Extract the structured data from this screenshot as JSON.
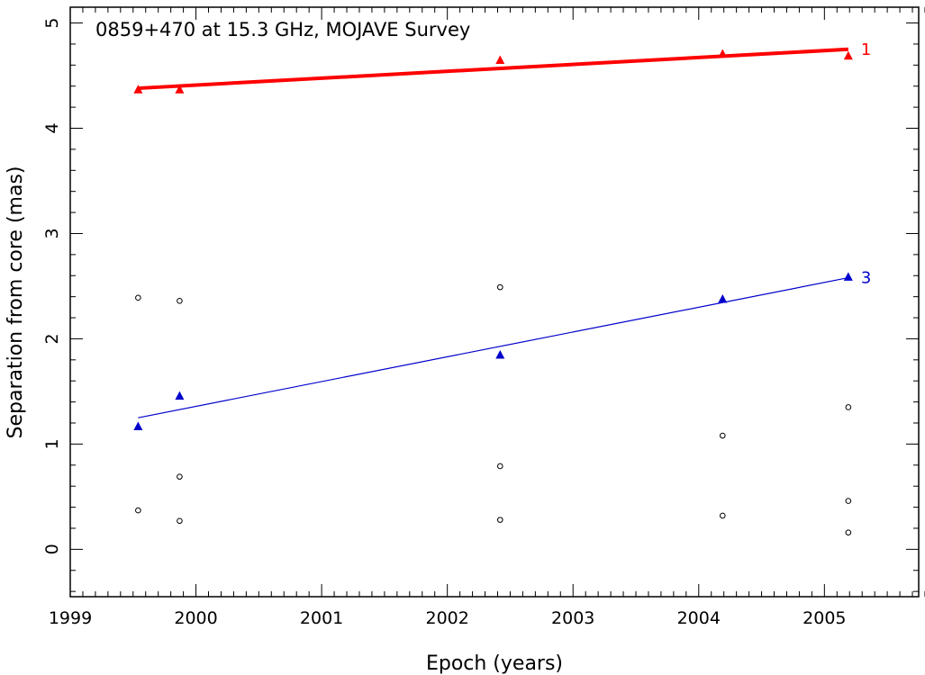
{
  "chart_data": {
    "type": "scatter",
    "title": "0859+470 at 15.3 GHz, MOJAVE Survey",
    "xlabel": "Epoch (years)",
    "ylabel": "Separation from core (mas)",
    "xlim": [
      1999.0,
      2005.75
    ],
    "ylim": [
      -0.45,
      5.15
    ],
    "x_ticks": [
      "1999",
      "2000",
      "2001",
      "2002",
      "2003",
      "2004",
      "2005"
    ],
    "y_ticks": [
      "0",
      "1",
      "2",
      "3",
      "4",
      "5"
    ],
    "grid": false,
    "series": [
      {
        "name": "1",
        "color": "#ff0000",
        "marker": "filled-triangle",
        "x": [
          1999.54,
          1999.87,
          2002.42,
          2004.19,
          2005.19
        ],
        "y": [
          4.37,
          4.37,
          4.65,
          4.71,
          4.69
        ],
        "fit": {
          "x": [
            1999.54,
            2005.19
          ],
          "y": [
            4.38,
            4.75
          ]
        }
      },
      {
        "name": "3",
        "color": "#0000cc",
        "marker": "filled-triangle",
        "x": [
          1999.54,
          1999.87,
          2002.42,
          2004.19,
          2005.19
        ],
        "y": [
          1.17,
          1.46,
          1.85,
          2.38,
          2.59
        ],
        "fit": {
          "x": [
            1999.54,
            2005.19
          ],
          "y": [
            1.25,
            2.58
          ]
        }
      },
      {
        "name": "",
        "color": "#000000",
        "marker": "open-circle",
        "x": [
          1999.54,
          1999.54,
          1999.87,
          1999.87,
          1999.87,
          2002.42,
          2002.42,
          2002.42,
          2004.19,
          2004.19,
          2005.19,
          2005.19,
          2005.19
        ],
        "y": [
          2.39,
          0.37,
          2.36,
          0.69,
          0.27,
          2.49,
          0.79,
          0.28,
          1.08,
          0.32,
          1.35,
          0.46,
          0.16
        ]
      }
    ]
  }
}
